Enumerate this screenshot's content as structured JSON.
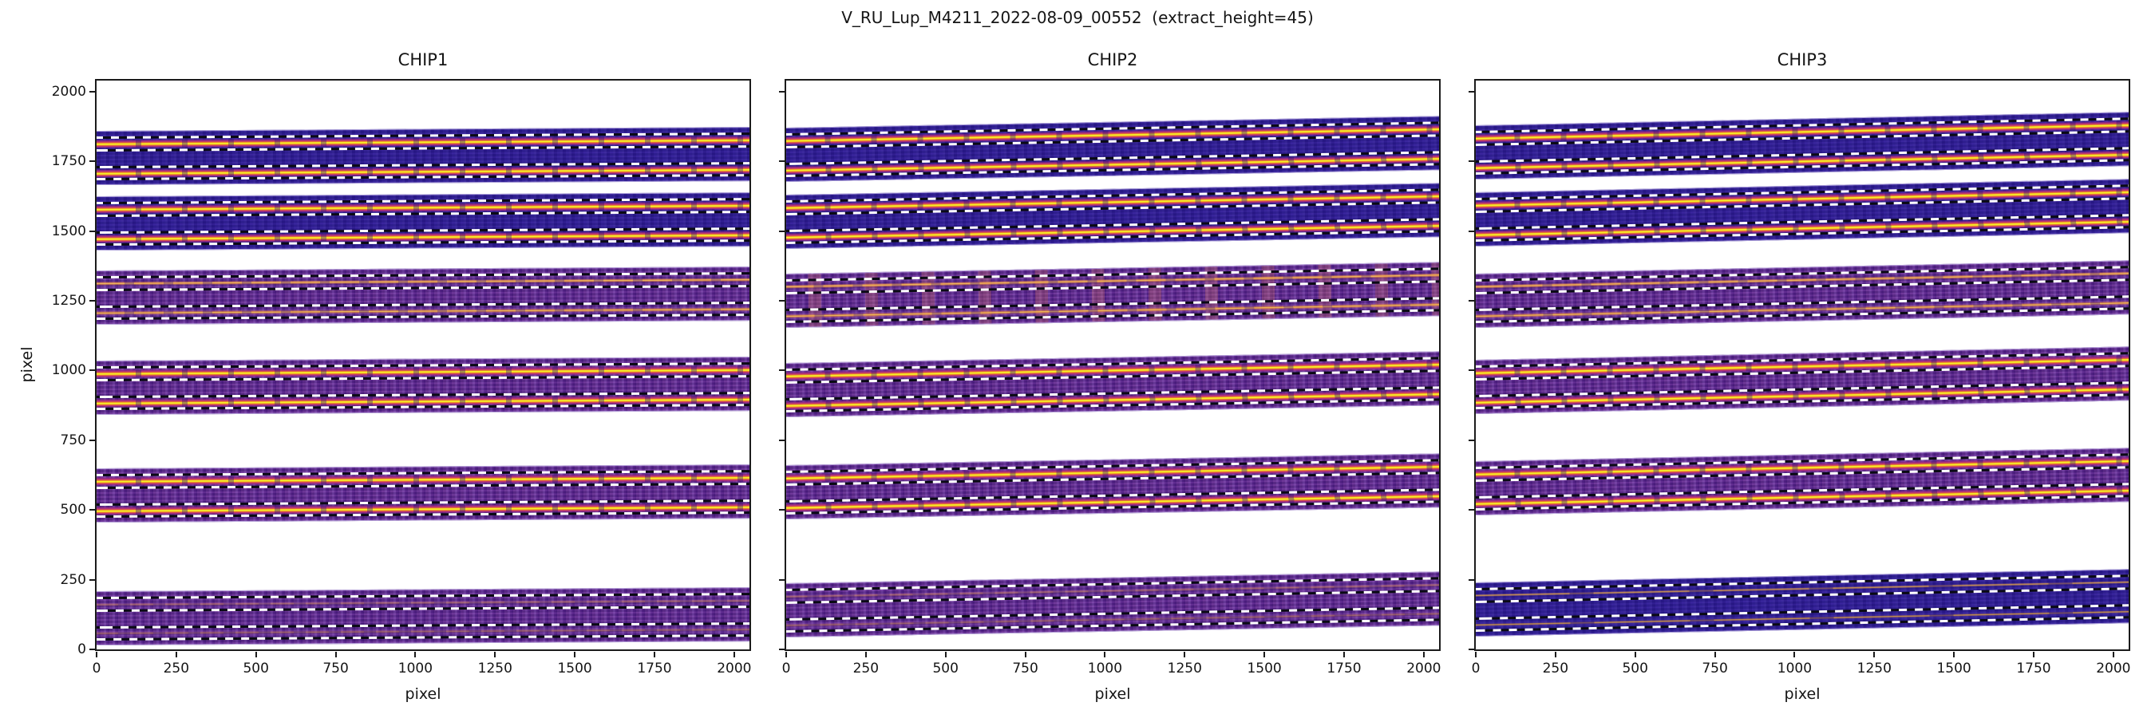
{
  "figure": {
    "title": "V_RU_Lup_M4211_2022-08-09_00552  (extract_height=45)"
  },
  "axes_labels": {
    "x": "pixel",
    "y": "pixel"
  },
  "colors": {
    "background": "#ffffff",
    "spine": "#1b1b1b",
    "strip_dark": "#2e1c96",
    "strip_purple": "#5a2790",
    "trace_core_yellow": "#f6ee2b",
    "trace_orange": "#f08a1e",
    "trace_magenta": "#c43a6e",
    "dash_white": "#ffffff",
    "dash_black": "#0a0a14",
    "emission_stripe": "#e67d58"
  },
  "chart_data": {
    "type": "heatmap",
    "description": "Echelle order trace cutouts (plasma colormap) with nod A/B traces and dashed extraction windows",
    "extract_height": 45,
    "x_range": [
      0,
      2048
    ],
    "y_range": [
      0,
      2040
    ],
    "x_ticks": [
      0,
      250,
      500,
      750,
      1000,
      1250,
      1500,
      1750,
      2000
    ],
    "y_ticks": [
      0,
      250,
      500,
      750,
      1000,
      1250,
      1500,
      1750,
      2000
    ],
    "trace_separation": 104,
    "strip_half_height": 97,
    "chips": [
      {
        "label": "CHIP1",
        "rise": 14,
        "orders": [
          {
            "center": 1762,
            "bg": "dark",
            "trace": "bright",
            "stripes": false
          },
          {
            "center": 1528,
            "bg": "dark",
            "trace": "bright",
            "stripes": false
          },
          {
            "center": 1262,
            "bg": "purple",
            "trace": "faint",
            "stripes": false
          },
          {
            "center": 940,
            "bg": "purple",
            "trace": "bright",
            "stripes": false
          },
          {
            "center": 552,
            "bg": "purple",
            "trace": "bright",
            "stripes": false
          },
          {
            "center": 112,
            "bg": "purple",
            "trace": "dim",
            "stripes": false
          }
        ]
      },
      {
        "label": "CHIP2",
        "rise": 42,
        "orders": [
          {
            "center": 1775,
            "bg": "dark",
            "trace": "bright",
            "stripes": false
          },
          {
            "center": 1535,
            "bg": "dark",
            "trace": "bright",
            "stripes": false
          },
          {
            "center": 1252,
            "bg": "purple",
            "trace": "faint",
            "stripes": true
          },
          {
            "center": 930,
            "bg": "purple",
            "trace": "bright",
            "stripes": false
          },
          {
            "center": 565,
            "bg": "purple",
            "trace": "bright",
            "stripes": false
          },
          {
            "center": 140,
            "bg": "purple",
            "trace": "dim",
            "stripes": false
          }
        ]
      },
      {
        "label": "CHIP3",
        "rise": 48,
        "orders": [
          {
            "center": 1782,
            "bg": "dark",
            "trace": "bright",
            "stripes": false
          },
          {
            "center": 1542,
            "bg": "dark",
            "trace": "bright",
            "stripes": false
          },
          {
            "center": 1252,
            "bg": "purple",
            "trace": "faint",
            "stripes": false
          },
          {
            "center": 942,
            "bg": "purple",
            "trace": "bright",
            "stripes": false
          },
          {
            "center": 578,
            "bg": "purple",
            "trace": "bright",
            "stripes": false
          },
          {
            "center": 143,
            "bg": "dark",
            "trace": "thin",
            "stripes": false
          }
        ]
      }
    ]
  }
}
